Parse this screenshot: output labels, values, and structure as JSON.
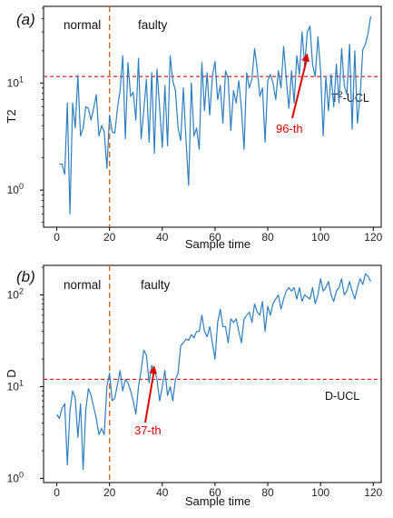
{
  "chart_data": [
    {
      "panel_label": "(a)",
      "type": "line",
      "xlabel": "Sample time",
      "ylabel": "T2",
      "xlim": [
        -5,
        123
      ],
      "ylim": [
        0.45,
        52
      ],
      "log_y": true,
      "x_ticks": [
        0,
        20,
        40,
        60,
        80,
        100,
        120
      ],
      "x_tick_labels": [
        "0",
        "20",
        "40",
        "60",
        "80",
        "100",
        "120"
      ],
      "y_ticks": [
        1,
        10
      ],
      "y_tick_labels_base": [
        "10",
        "10"
      ],
      "y_tick_labels_exp": [
        "0",
        "1"
      ],
      "region_labels": [
        "normal",
        "faulty"
      ],
      "fault_onset_x": 20,
      "control_limit": {
        "value": 11.5,
        "label_base": "T",
        "label_sup": "2",
        "label_rest": "-UCL"
      },
      "annotation": {
        "text": "96-th",
        "x": 95,
        "y": 19
      },
      "series_color": "#2e7fc0",
      "ucl_color": "#e01010",
      "onset_color": "#d2691e",
      "annotation_color": "#e00000",
      "x": [
        1,
        2,
        3,
        4,
        5,
        6,
        7,
        8,
        9,
        10,
        11,
        12,
        13,
        14,
        15,
        16,
        17,
        18,
        19,
        20,
        21,
        22,
        23,
        24,
        25,
        26,
        27,
        28,
        29,
        30,
        31,
        32,
        33,
        34,
        35,
        36,
        37,
        38,
        39,
        40,
        41,
        42,
        43,
        44,
        45,
        46,
        47,
        48,
        49,
        50,
        51,
        52,
        53,
        54,
        55,
        56,
        57,
        58,
        59,
        60,
        61,
        62,
        63,
        64,
        65,
        66,
        67,
        68,
        69,
        70,
        71,
        72,
        73,
        74,
        75,
        76,
        77,
        78,
        79,
        80,
        81,
        82,
        83,
        84,
        85,
        86,
        87,
        88,
        89,
        90,
        91,
        92,
        93,
        94,
        95,
        96,
        97,
        98,
        99,
        100,
        101,
        102,
        103,
        104,
        105,
        106,
        107,
        108,
        109,
        110,
        111,
        112,
        113,
        114,
        115,
        116,
        117,
        118,
        119
      ],
      "values": [
        1.75,
        1.75,
        1.4,
        6.5,
        0.6,
        6.5,
        3.8,
        11.8,
        3.2,
        3.8,
        6.0,
        5.8,
        4.5,
        5.8,
        7.8,
        3.2,
        4.0,
        3.5,
        1.6,
        5.0,
        3.5,
        3.4,
        5.8,
        8.5,
        18.0,
        3.0,
        15.5,
        7.5,
        8.2,
        4.5,
        17.0,
        3.0,
        5.5,
        10.8,
        2.8,
        12.5,
        2.2,
        13.5,
        5.8,
        2.5,
        9.5,
        2.6,
        18.0,
        10.5,
        8.5,
        3.8,
        2.9,
        9.0,
        3.0,
        1.1,
        10.0,
        3.2,
        3.8,
        2.4,
        15.5,
        5.5,
        12.5,
        5.0,
        11.5,
        16.0,
        7.0,
        9.5,
        4.2,
        13.0,
        11.0,
        3.6,
        8.5,
        6.5,
        10.5,
        5.8,
        2.4,
        12.5,
        9.0,
        11.0,
        21.0,
        13.5,
        7.5,
        9.0,
        2.8,
        10.5,
        12.0,
        10.0,
        7.0,
        13.0,
        9.0,
        22.0,
        11.0,
        5.8,
        13.0,
        6.5,
        18.0,
        12.0,
        30.0,
        14.5,
        30.0,
        34.0,
        15.0,
        11.5,
        27.0,
        13.0,
        3.2,
        11.5,
        5.5,
        12.0,
        6.0,
        15.0,
        6.5,
        21.0,
        9.5,
        7.8,
        23.0,
        3.7,
        20.0,
        4.2,
        7.5,
        20.5,
        23.0,
        29.0,
        42.0
      ]
    },
    {
      "panel_label": "(b)",
      "type": "line",
      "xlabel": "Sample time",
      "ylabel": "D",
      "xlim": [
        -5,
        123
      ],
      "ylim": [
        0.9,
        210
      ],
      "log_y": true,
      "x_ticks": [
        0,
        20,
        40,
        60,
        80,
        100,
        120
      ],
      "x_tick_labels": [
        "0",
        "20",
        "40",
        "60",
        "80",
        "100",
        "120"
      ],
      "y_ticks": [
        1,
        10,
        100
      ],
      "y_tick_labels_base": [
        "10",
        "10",
        "10"
      ],
      "y_tick_labels_exp": [
        "0",
        "1",
        "2"
      ],
      "region_labels": [
        "normal",
        "faulty"
      ],
      "fault_onset_x": 20,
      "control_limit": {
        "value": 12.0,
        "label_base": "D-UCL",
        "label_sup": "",
        "label_rest": ""
      },
      "annotation": {
        "text": "37-th",
        "x": 37,
        "y": 17
      },
      "series_color": "#2e7fc0",
      "ucl_color": "#e01010",
      "onset_color": "#d2691e",
      "annotation_color": "#e00000",
      "x": [
        0,
        1,
        2,
        3,
        4,
        5,
        6,
        7,
        8,
        9,
        10,
        11,
        12,
        13,
        14,
        15,
        16,
        17,
        18,
        19,
        20,
        21,
        22,
        23,
        24,
        25,
        26,
        27,
        28,
        29,
        30,
        31,
        32,
        33,
        34,
        35,
        36,
        37,
        38,
        39,
        40,
        41,
        42,
        43,
        44,
        45,
        46,
        47,
        48,
        49,
        50,
        51,
        52,
        53,
        54,
        55,
        56,
        57,
        58,
        59,
        60,
        61,
        62,
        63,
        64,
        65,
        66,
        67,
        68,
        69,
        70,
        71,
        72,
        73,
        74,
        75,
        76,
        77,
        78,
        79,
        80,
        81,
        82,
        83,
        84,
        85,
        86,
        87,
        88,
        89,
        90,
        91,
        92,
        93,
        94,
        95,
        96,
        97,
        98,
        99,
        100,
        101,
        102,
        103,
        104,
        105,
        106,
        107,
        108,
        109,
        110,
        111,
        112,
        113,
        114,
        115,
        116,
        117,
        118,
        119
      ],
      "values": [
        5.0,
        4.5,
        5.8,
        6.5,
        1.4,
        5.5,
        9.0,
        7.5,
        2.8,
        6.5,
        1.25,
        5.5,
        9.5,
        8.0,
        6.0,
        4.5,
        3.0,
        3.5,
        3.0,
        10.0,
        14.0,
        7.0,
        7.5,
        10.5,
        15.0,
        9.0,
        12.0,
        11.0,
        9.0,
        7.0,
        5.0,
        10.0,
        15.0,
        25.0,
        22.0,
        11.0,
        17.0,
        15.0,
        12.0,
        7.0,
        10.0,
        15.0,
        8.0,
        10.0,
        7.0,
        12.0,
        14.0,
        28.0,
        30.0,
        33.0,
        32.0,
        37.0,
        34.0,
        40.0,
        40.0,
        60.0,
        40.0,
        35.0,
        45.0,
        30.0,
        20.0,
        50.0,
        70.0,
        45.0,
        45.0,
        30.0,
        55.0,
        50.0,
        55.0,
        40.0,
        30.0,
        55.0,
        60.0,
        65.0,
        50.0,
        80.0,
        65.0,
        60.0,
        85.0,
        40.0,
        75.0,
        60.0,
        80.0,
        90.0,
        100.0,
        70.0,
        90.0,
        110.0,
        120.0,
        110.0,
        120.0,
        90.0,
        120.0,
        85.0,
        100.0,
        95.0,
        90.0,
        120.0,
        80.0,
        100.0,
        150.0,
        110.0,
        120.0,
        140.0,
        100.0,
        85.0,
        110.0,
        120.0,
        150.0,
        100.0,
        110.0,
        140.0,
        110.0,
        90.0,
        120.0,
        150.0,
        130.0,
        170.0,
        160.0,
        140.0
      ]
    }
  ]
}
